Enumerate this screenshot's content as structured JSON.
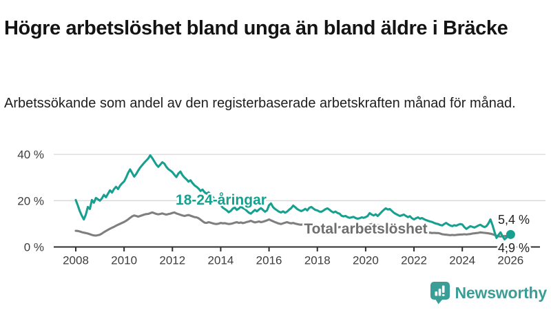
{
  "header": {
    "title": "Högre arbetslöshet bland unga än bland äldre i Bräcke",
    "subtitle": "Arbetssökande som andel av den registerbaserade arbetskraften månad för månad."
  },
  "colors": {
    "accent_teal": "#17a08f",
    "line_gray": "#7f7f7f",
    "label_gray": "#6e6e6e",
    "axis": "#2e2e2e",
    "gridline": "#d8d8d8",
    "logo_teal": "#3a9e96"
  },
  "branding": {
    "logo_text": "Newsworthy",
    "logo_icon": "bar-chart-speech-bubble-icon"
  },
  "chart_data": {
    "type": "line",
    "unit": "%",
    "x_interval": "monthly",
    "x_start": "2008-01",
    "x_end": "2026-01",
    "x_tick_years": [
      2008,
      2010,
      2012,
      2014,
      2016,
      2018,
      2020,
      2022,
      2024,
      2026
    ],
    "y_ticks": [
      {
        "value": 0,
        "label": "0 %"
      },
      {
        "value": 20,
        "label": "20 %"
      },
      {
        "value": 40,
        "label": "40 %"
      }
    ],
    "ylim": [
      0,
      44
    ],
    "grid": "horizontal",
    "legend_position": "inline-labels",
    "series": [
      {
        "name": "18-24-åringar",
        "color": "#17a08f",
        "end_value": 5.4,
        "end_label": "5,4 %",
        "end_dot": true,
        "values": [
          20.3,
          18.0,
          15.5,
          13.5,
          11.9,
          14.0,
          17.3,
          16.4,
          20.3,
          19.1,
          21.2,
          20.6,
          20.0,
          21.0,
          22.5,
          21.5,
          23.0,
          24.5,
          23.5,
          25.0,
          26.0,
          25.0,
          26.5,
          27.5,
          28.3,
          30.0,
          32.0,
          33.5,
          32.0,
          30.4,
          31.5,
          33.0,
          34.3,
          35.4,
          36.4,
          37.3,
          38.2,
          39.6,
          38.4,
          37.0,
          35.6,
          34.6,
          35.6,
          36.6,
          36.0,
          34.6,
          33.6,
          33.0,
          32.3,
          31.2,
          30.2,
          31.8,
          32.6,
          31.0,
          30.0,
          29.2,
          28.2,
          28.8,
          27.6,
          26.6,
          26.0,
          25.2,
          24.2,
          24.8,
          23.6,
          23.0,
          23.6,
          22.6,
          21.6,
          20.6,
          19.6,
          18.6,
          18.0,
          17.0,
          16.4,
          15.8,
          15.0,
          15.6,
          16.6,
          17.0,
          16.0,
          16.6,
          17.4,
          16.8,
          16.4,
          15.6,
          14.8,
          14.4,
          15.2,
          16.0,
          15.4,
          16.2,
          16.8,
          16.0,
          15.2,
          15.8,
          18.0,
          18.8,
          17.2,
          16.4,
          15.8,
          15.2,
          14.9,
          15.4,
          14.8,
          15.3,
          16.1,
          16.8,
          17.9,
          17.2,
          16.4,
          15.9,
          15.5,
          15.9,
          16.5,
          15.8,
          16.9,
          17.3,
          16.6,
          16.0,
          15.8,
          15.3,
          15.2,
          15.7,
          16.3,
          16.7,
          16.1,
          15.4,
          14.9,
          15.3,
          14.7,
          14.4,
          13.5,
          13.2,
          13.4,
          12.9,
          12.6,
          12.8,
          13.0,
          12.5,
          12.2,
          12.4,
          12.8,
          12.6,
          12.9,
          13.4,
          14.6,
          14.0,
          13.6,
          14.1,
          13.4,
          14.3,
          15.2,
          16.0,
          16.7,
          16.2,
          16.4,
          15.6,
          14.8,
          14.3,
          13.8,
          13.4,
          13.7,
          14.0,
          13.4,
          12.9,
          13.3,
          12.4,
          11.9,
          12.4,
          12.8,
          12.2,
          12.5,
          12.0,
          11.6,
          11.3,
          11.0,
          10.8,
          10.4,
          10.1,
          9.9,
          9.5,
          9.3,
          9.9,
          10.4,
          9.8,
          9.3,
          9.0,
          9.4,
          9.2,
          9.6,
          9.9,
          9.7,
          8.6,
          7.8,
          8.4,
          9.0,
          8.7,
          8.4,
          8.8,
          9.3,
          9.6,
          9.0,
          8.6,
          9.0,
          10.2,
          11.9,
          9.5,
          6.5,
          3.9,
          5.2,
          6.3,
          4.6,
          3.3,
          4.1,
          4.8,
          5.4
        ]
      },
      {
        "name": "Total arbetslöshet",
        "color": "#7f7f7f",
        "end_value": 4.9,
        "end_label": "4,9 %",
        "end_dot": false,
        "values": [
          7.0,
          6.9,
          6.7,
          6.4,
          6.2,
          6.0,
          5.8,
          5.5,
          5.2,
          5.0,
          4.9,
          5.1,
          5.3,
          5.8,
          6.4,
          6.9,
          7.4,
          7.9,
          8.3,
          8.7,
          9.2,
          9.6,
          10.0,
          10.4,
          10.8,
          11.3,
          11.9,
          12.6,
          13.2,
          13.6,
          13.4,
          13.1,
          13.4,
          13.7,
          14.0,
          14.2,
          14.3,
          14.6,
          14.9,
          14.6,
          14.3,
          14.1,
          14.3,
          14.5,
          14.2,
          14.0,
          14.2,
          14.4,
          14.7,
          14.9,
          14.5,
          14.2,
          13.9,
          13.6,
          13.4,
          13.6,
          13.8,
          13.5,
          13.2,
          12.9,
          12.8,
          12.4,
          11.8,
          11.1,
          10.5,
          10.4,
          10.7,
          10.5,
          10.2,
          10.0,
          9.9,
          10.1,
          10.4,
          10.2,
          10.3,
          10.1,
          9.9,
          10.0,
          10.2,
          10.5,
          10.7,
          10.4,
          10.6,
          10.3,
          10.5,
          10.8,
          11.0,
          11.3,
          10.9,
          10.6,
          10.8,
          11.0,
          10.7,
          10.9,
          11.2,
          11.5,
          11.9,
          11.5,
          11.1,
          10.7,
          10.4,
          10.1,
          9.9,
          10.2,
          10.5,
          10.7,
          10.4,
          10.2,
          10.4,
          10.1,
          9.9,
          9.7,
          9.6,
          9.8,
          9.9,
          9.7,
          9.5,
          9.4,
          9.6,
          9.4,
          9.3,
          9.1,
          9.0,
          8.9,
          9.1,
          9.2,
          9.0,
          8.8,
          8.7,
          8.5,
          8.4,
          8.6,
          8.5,
          8.4,
          8.3,
          8.5,
          8.6,
          8.4,
          8.2,
          8.1,
          8.3,
          8.4,
          8.6,
          8.8,
          9.0,
          9.3,
          9.7,
          9.9,
          9.8,
          9.6,
          9.4,
          9.5,
          9.3,
          9.1,
          8.9,
          8.7,
          8.6,
          8.4,
          8.2,
          8.0,
          7.8,
          7.6,
          7.5,
          7.3,
          7.2,
          7.0,
          6.9,
          6.8,
          6.9,
          6.7,
          6.6,
          6.4,
          6.3,
          6.4,
          6.2,
          6.1,
          6.2,
          6.0,
          6.1,
          6.0,
          6.0,
          5.8,
          5.5,
          5.4,
          5.3,
          5.2,
          5.1,
          5.2,
          5.1,
          5.2,
          5.3,
          5.4,
          5.4,
          5.5,
          5.4,
          5.5,
          5.6,
          5.8,
          5.9,
          6.0,
          6.1,
          6.3,
          6.2,
          6.1,
          6.0,
          5.9,
          5.7,
          5.5,
          5.2,
          4.8,
          4.6,
          4.5,
          4.6,
          4.7,
          4.8,
          4.9,
          4.9
        ]
      }
    ]
  }
}
